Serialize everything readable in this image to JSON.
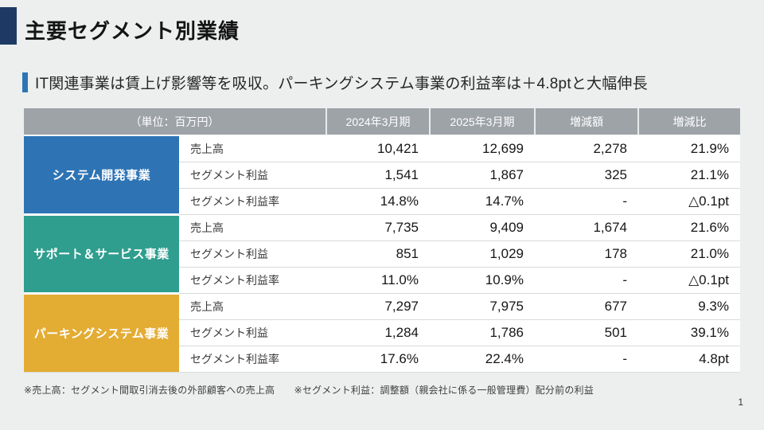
{
  "page": {
    "title": "主要セグメント別業績",
    "subtitle": "IT関連事業は賃上げ影響等を吸収。パーキングシステム事業の利益率は＋4.8ptと大幅伸長",
    "footnote": "※売上高：セグメント間取引消去後の外部顧客への売上高　　※セグメント利益：調整額（親会社に係る一般管理費）配分前の利益",
    "page_number": "1"
  },
  "colors": {
    "title_accent_navy": "#1e3a64",
    "subtitle_accent_blue": "#2e74b5",
    "header_gray": "#9ea3a8",
    "segment_blue": "#2e74b5",
    "segment_teal": "#2f9e8e",
    "segment_gold": "#e3ac33"
  },
  "table": {
    "unit_label": "（単位：百万円）",
    "columns": [
      "2024年3月期",
      "2025年3月期",
      "増減額",
      "増減比"
    ],
    "segments": [
      {
        "name": "システム開発事業",
        "color": "#2e74b5",
        "rows": [
          {
            "label": "売上高",
            "values": [
              "10,421",
              "12,699",
              "2,278",
              "21.9%"
            ]
          },
          {
            "label": "セグメント利益",
            "values": [
              "1,541",
              "1,867",
              "325",
              "21.1%"
            ]
          },
          {
            "label": "セグメント利益率",
            "values": [
              "14.8%",
              "14.7%",
              "-",
              "△0.1pt"
            ]
          }
        ]
      },
      {
        "name": "サポート＆サービス事業",
        "color": "#2f9e8e",
        "rows": [
          {
            "label": "売上高",
            "values": [
              "7,735",
              "9,409",
              "1,674",
              "21.6%"
            ]
          },
          {
            "label": "セグメント利益",
            "values": [
              "851",
              "1,029",
              "178",
              "21.0%"
            ]
          },
          {
            "label": "セグメント利益率",
            "values": [
              "11.0%",
              "10.9%",
              "-",
              "△0.1pt"
            ]
          }
        ]
      },
      {
        "name": "パーキングシステム事業",
        "color": "#e3ac33",
        "rows": [
          {
            "label": "売上高",
            "values": [
              "7,297",
              "7,975",
              "677",
              "9.3%"
            ]
          },
          {
            "label": "セグメント利益",
            "values": [
              "1,284",
              "1,786",
              "501",
              "39.1%"
            ]
          },
          {
            "label": "セグメント利益率",
            "values": [
              "17.6%",
              "22.4%",
              "-",
              "4.8pt"
            ]
          }
        ]
      }
    ]
  }
}
